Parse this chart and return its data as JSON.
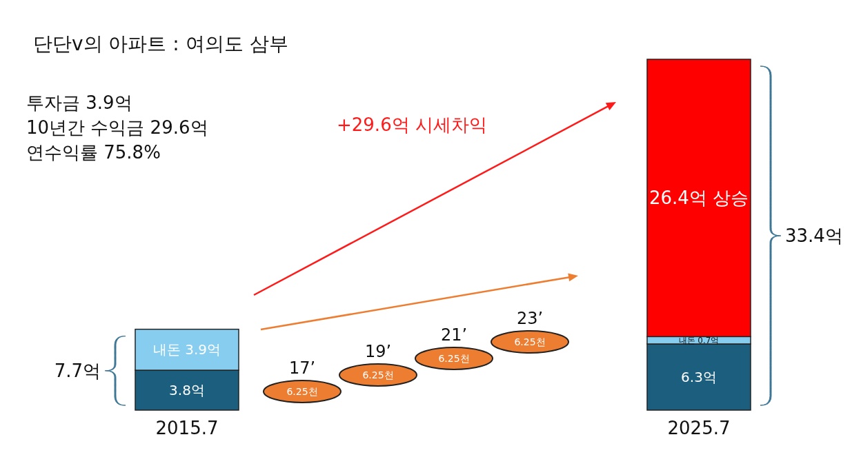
{
  "chart_data": {
    "type": "bar",
    "stacked": true,
    "title": "단단v의 아파트 : 여의도 삼부",
    "categories": [
      "2015.7",
      "2025.7"
    ],
    "series": [
      {
        "color": "#1b5e7e",
        "values": [
          3.8,
          6.3
        ],
        "value_labels": [
          "3.8억",
          "6.3억"
        ]
      },
      {
        "color": "#86cdf0",
        "values": [
          3.9,
          0.7
        ],
        "value_labels": [
          "내돈 3.9억",
          "내돈 0.7억"
        ]
      },
      {
        "color": "#ff0000",
        "values": [
          null,
          26.4
        ],
        "value_labels": [
          null,
          "26.4억 상승"
        ]
      }
    ],
    "totals": [
      "7.7억",
      "33.4억"
    ],
    "annotations": [
      "투자금 3.9억",
      "10년간 수익금 29.6억",
      "연수익률 75.8%",
      "+29.6억 시세차익",
      "17’",
      "6.25천",
      "19’",
      "6.25천",
      "21’",
      "6.25천",
      "23’",
      "6.25천"
    ]
  }
}
